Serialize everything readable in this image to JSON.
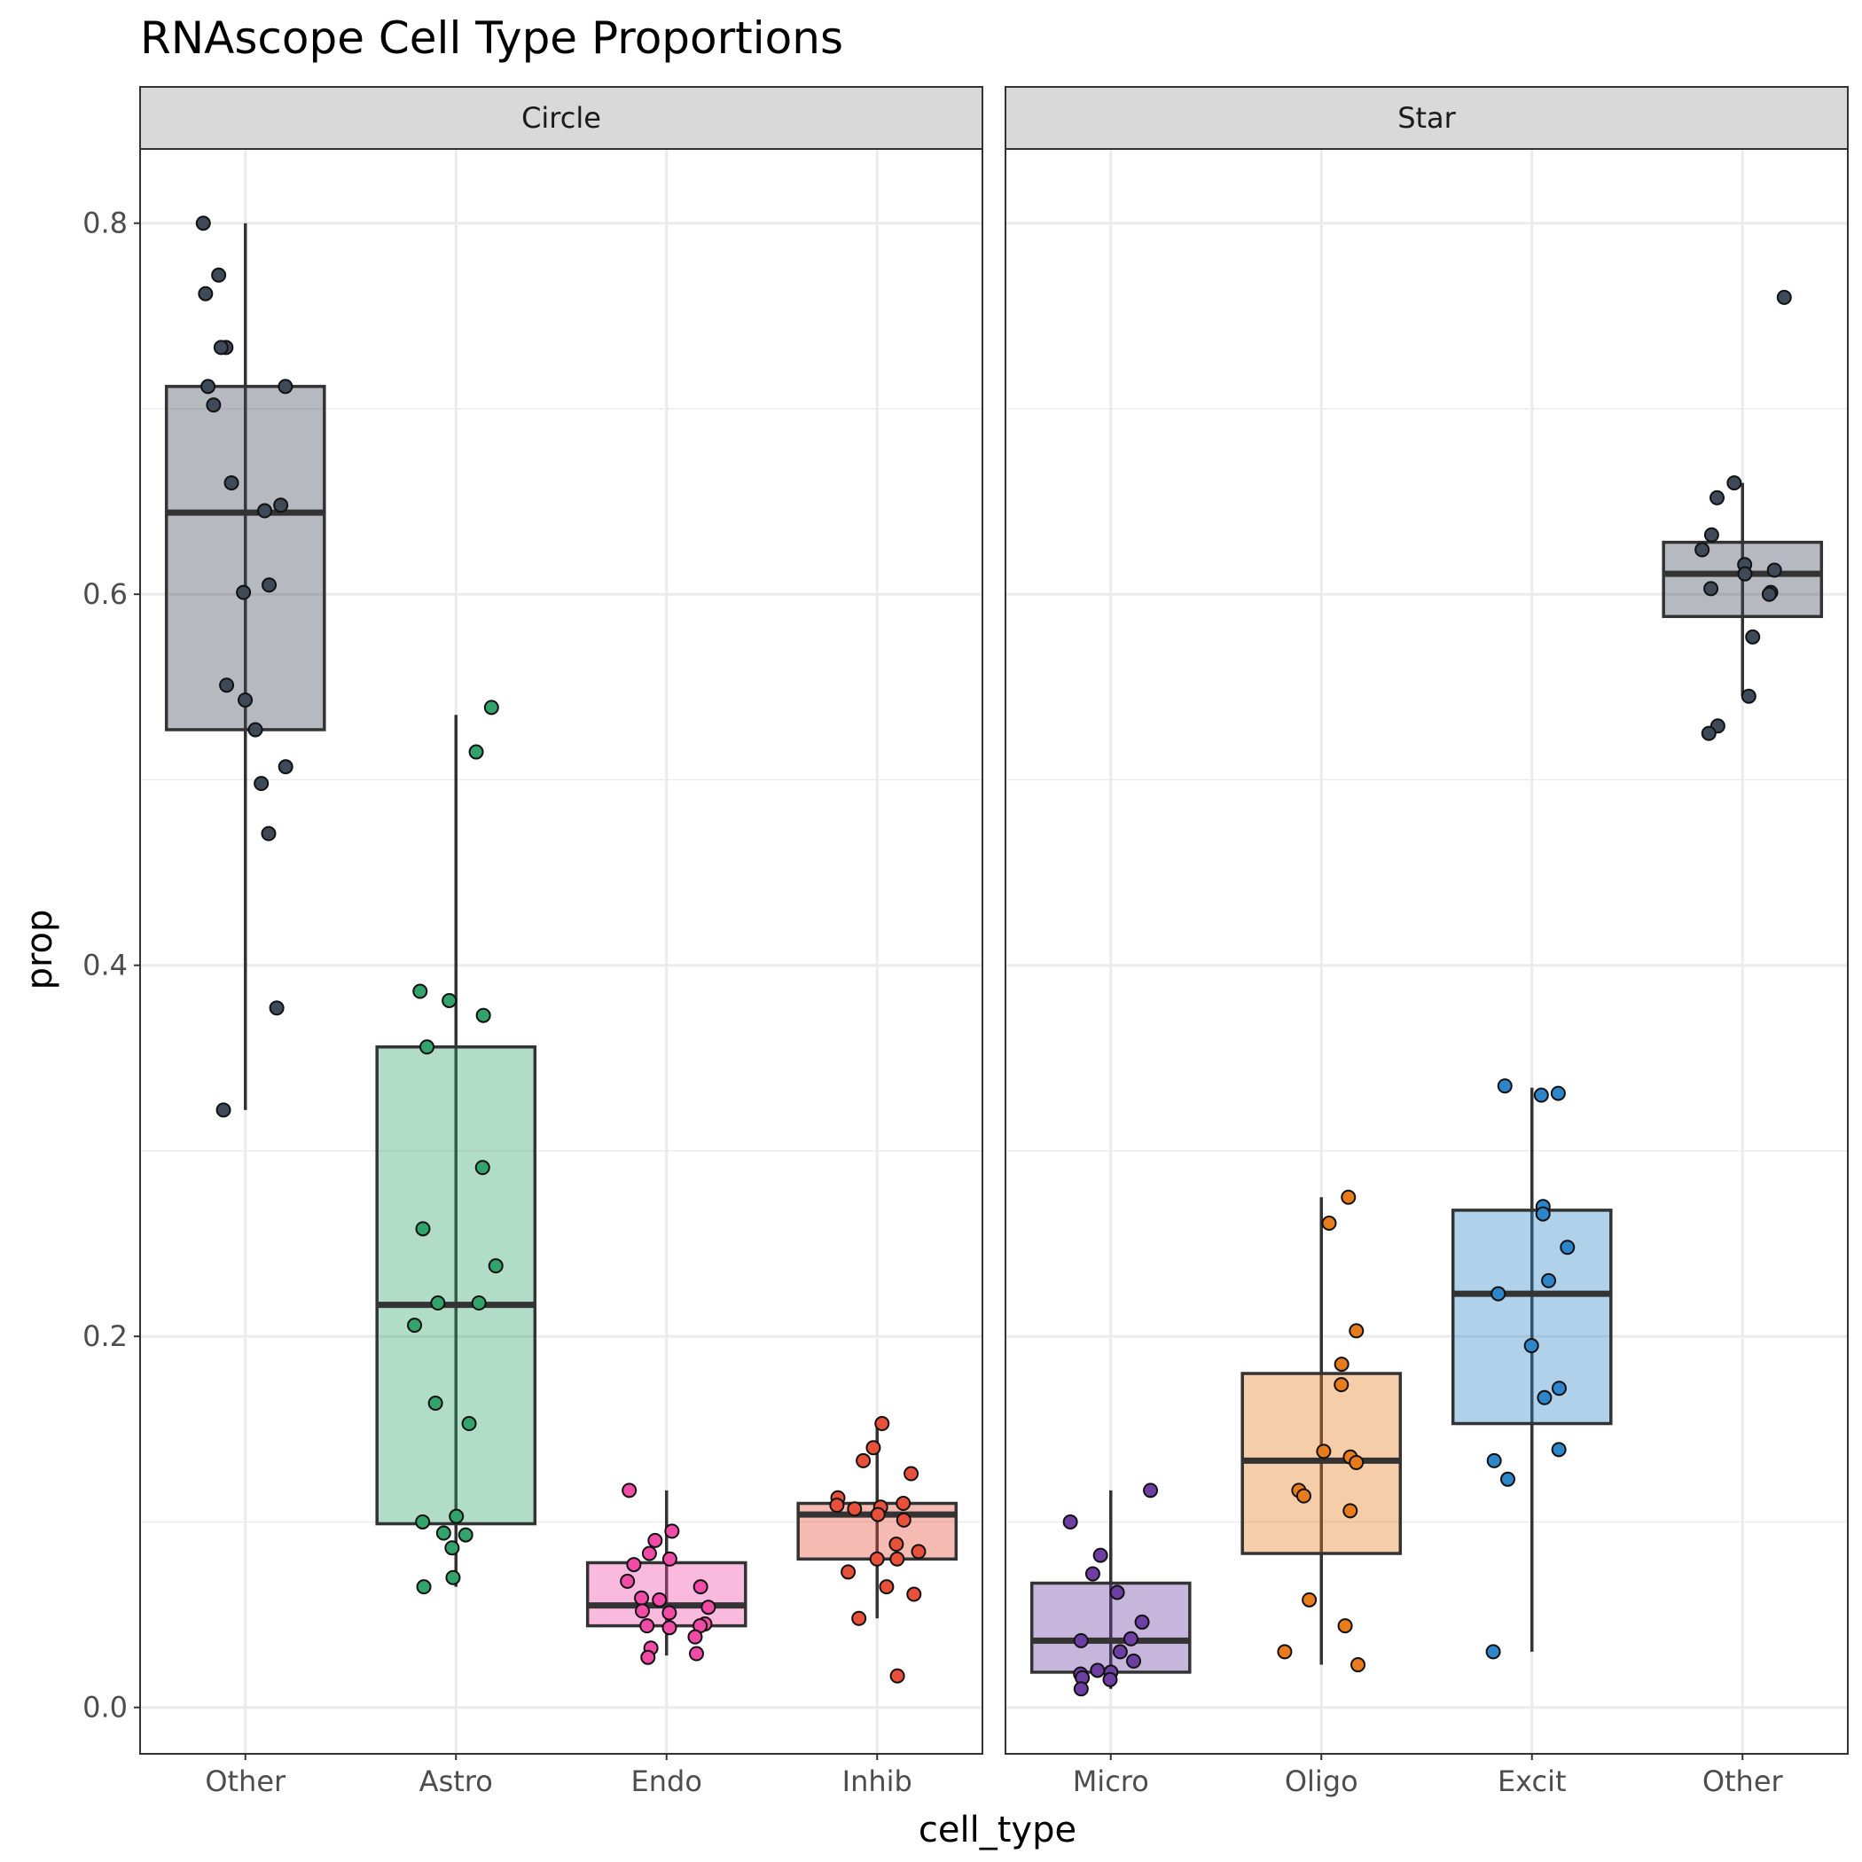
{
  "chart_data": {
    "type": "box",
    "title": "RNAscope Cell Type Proportions",
    "xlabel": "cell_type",
    "ylabel": "prop",
    "ylim": [
      -0.025,
      0.84
    ],
    "yticks": [
      0.0,
      0.2,
      0.4,
      0.6,
      0.8
    ],
    "ytick_labels": [
      "0.0",
      "0.2",
      "0.4",
      "0.6",
      "0.8"
    ],
    "grid": true,
    "facets": [
      {
        "name": "Circle",
        "categories": [
          {
            "name": "Other",
            "color": "#3f4a59",
            "box": {
              "q1": 0.527,
              "median": 0.644,
              "q3": 0.712,
              "whisker_low": 0.322,
              "whisker_high": 0.8
            },
            "points": [
              0.8,
              0.772,
              0.762,
              0.733,
              0.733,
              0.712,
              0.712,
              0.702,
              0.66,
              0.648,
              0.645,
              0.605,
              0.601,
              0.551,
              0.543,
              0.527,
              0.507,
              0.498,
              0.471,
              0.377,
              0.322
            ]
          },
          {
            "name": "Astro",
            "color": "#33a36c",
            "box": {
              "q1": 0.099,
              "median": 0.217,
              "q3": 0.356,
              "whisker_low": 0.065,
              "whisker_high": 0.535
            },
            "points": [
              0.539,
              0.515,
              0.386,
              0.381,
              0.373,
              0.356,
              0.291,
              0.258,
              0.238,
              0.218,
              0.218,
              0.206,
              0.164,
              0.153,
              0.103,
              0.1,
              0.094,
              0.093,
              0.086,
              0.07,
              0.065
            ]
          },
          {
            "name": "Endo",
            "color": "#f24aa7",
            "box": {
              "q1": 0.044,
              "median": 0.055,
              "q3": 0.078,
              "whisker_low": 0.028,
              "whisker_high": 0.117
            },
            "points": [
              0.117,
              0.095,
              0.09,
              0.083,
              0.08,
              0.077,
              0.068,
              0.065,
              0.059,
              0.058,
              0.054,
              0.052,
              0.051,
              0.045,
              0.044,
              0.044,
              0.043,
              0.038,
              0.032,
              0.029,
              0.027
            ]
          },
          {
            "name": "Inhib",
            "color": "#e8503a",
            "box": {
              "q1": 0.08,
              "median": 0.104,
              "q3": 0.11,
              "whisker_low": 0.048,
              "whisker_high": 0.152
            },
            "points": [
              0.153,
              0.14,
              0.133,
              0.126,
              0.113,
              0.11,
              0.109,
              0.108,
              0.107,
              0.104,
              0.101,
              0.088,
              0.084,
              0.08,
              0.08,
              0.073,
              0.065,
              0.061,
              0.048,
              0.017
            ]
          }
        ]
      },
      {
        "name": "Star",
        "categories": [
          {
            "name": "Micro",
            "color": "#6d3fa3",
            "box": {
              "q1": 0.019,
              "median": 0.036,
              "q3": 0.067,
              "whisker_low": 0.01,
              "whisker_high": 0.117
            },
            "points": [
              0.117,
              0.1,
              0.082,
              0.072,
              0.062,
              0.046,
              0.037,
              0.036,
              0.03,
              0.025,
              0.02,
              0.019,
              0.018,
              0.016,
              0.015,
              0.01
            ]
          },
          {
            "name": "Oligo",
            "color": "#e87b1c",
            "box": {
              "q1": 0.083,
              "median": 0.133,
              "q3": 0.18,
              "whisker_low": 0.023,
              "whisker_high": 0.275
            },
            "points": [
              0.275,
              0.261,
              0.203,
              0.185,
              0.174,
              0.138,
              0.135,
              0.132,
              0.117,
              0.114,
              0.106,
              0.058,
              0.044,
              0.03,
              0.023
            ]
          },
          {
            "name": "Excit",
            "color": "#2c86c9",
            "box": {
              "q1": 0.153,
              "median": 0.223,
              "q3": 0.268,
              "whisker_low": 0.03,
              "whisker_high": 0.334
            },
            "points": [
              0.335,
              0.33,
              0.331,
              0.27,
              0.266,
              0.248,
              0.23,
              0.223,
              0.195,
              0.172,
              0.167,
              0.139,
              0.133,
              0.123,
              0.03
            ]
          },
          {
            "name": "Other",
            "color": "#3f4a59",
            "box": {
              "q1": 0.588,
              "median": 0.611,
              "q3": 0.628,
              "whisker_low": 0.545,
              "whisker_high": 0.66
            },
            "points": [
              0.76,
              0.66,
              0.652,
              0.632,
              0.624,
              0.616,
              0.613,
              0.611,
              0.603,
              0.601,
              0.6,
              0.577,
              0.545,
              0.529,
              0.525
            ]
          }
        ]
      }
    ]
  }
}
